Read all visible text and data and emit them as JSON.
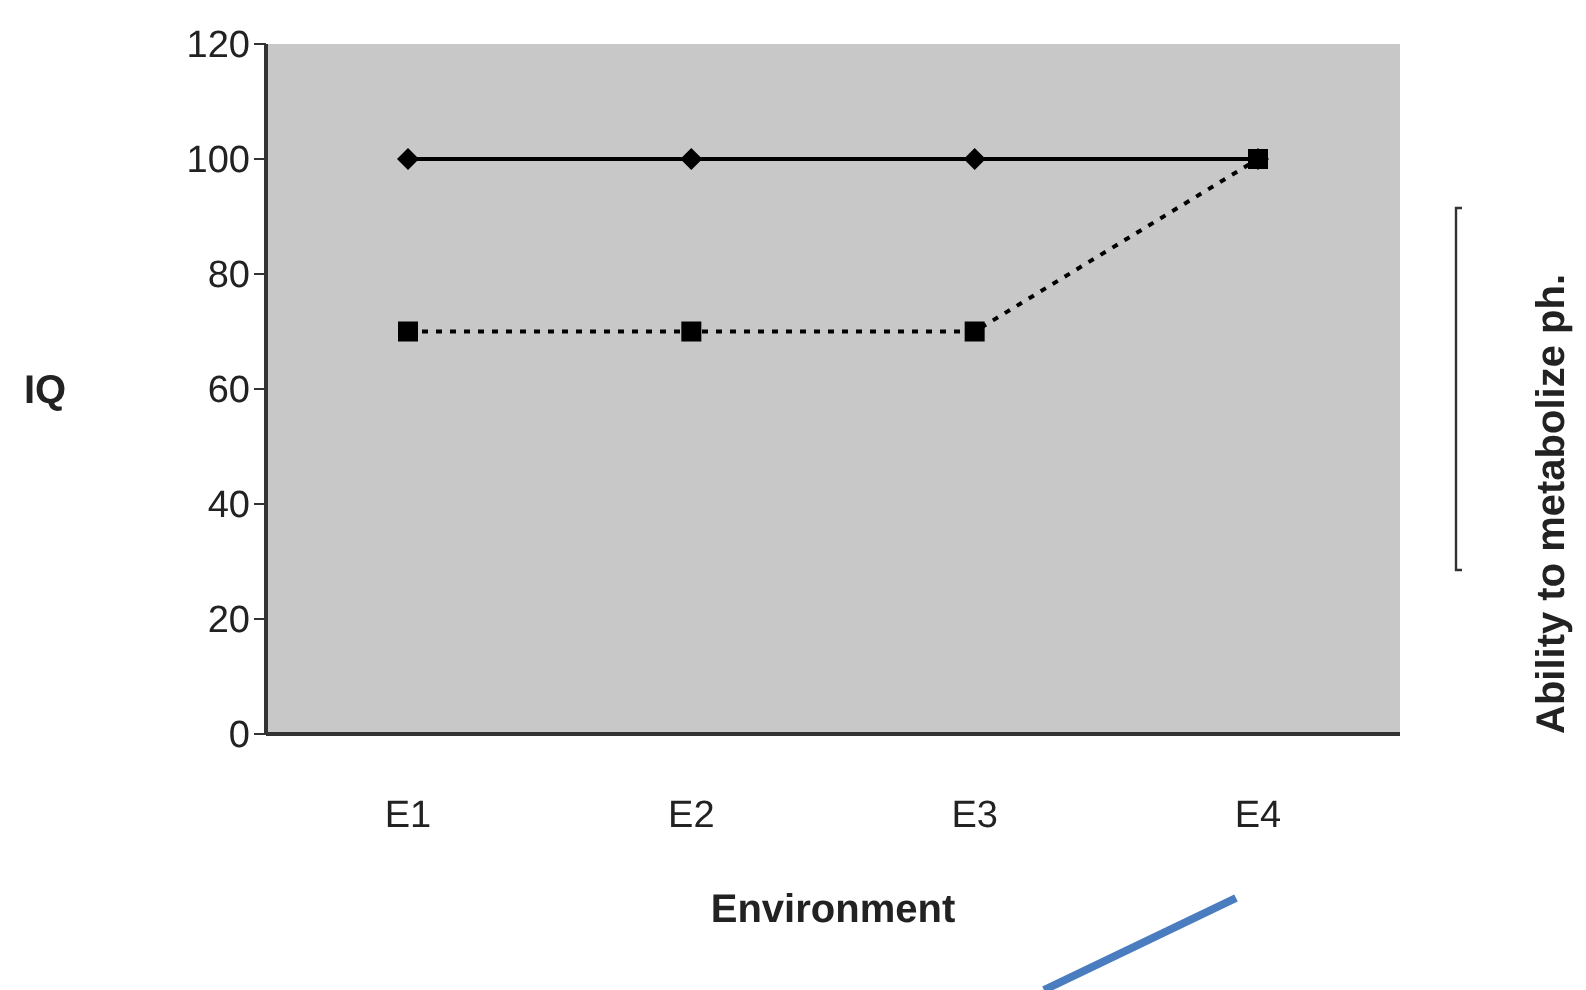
{
  "chart_data": {
    "type": "line",
    "xlabel": "Environment",
    "ylabel": "IQ",
    "categories": [
      "E1",
      "E2",
      "E3",
      "E4"
    ],
    "series": [
      {
        "color": "#000000",
        "values": [
          100,
          100,
          100,
          100
        ],
        "marker": "diamond",
        "line_style": "solid"
      },
      {
        "color": "#000000",
        "values": [
          70,
          70,
          70,
          100
        ],
        "marker": "square",
        "line_style": "dotted"
      }
    ],
    "ylim": [
      0,
      120
    ],
    "yticks": [
      0,
      20,
      40,
      60,
      80,
      100,
      120
    ],
    "grid": false,
    "annotations": [
      "Ability to metabolize ph."
    ]
  }
}
